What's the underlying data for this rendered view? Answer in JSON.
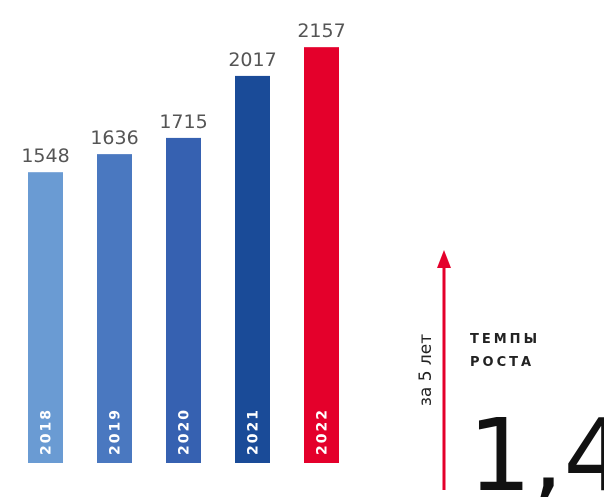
{
  "chart_data": {
    "type": "bar",
    "categories": [
      "2018",
      "2019",
      "2020",
      "2021",
      "2022"
    ],
    "values": [
      1548,
      1636,
      1715,
      2017,
      2157
    ],
    "colors": [
      "#6a9bd3",
      "#4a78c0",
      "#3661b1",
      "#1a4b98",
      "#e4002b"
    ],
    "annotations": [
      "за 5 лет",
      "ТЕМПЫ",
      "РОСТА",
      "1,4"
    ]
  }
}
